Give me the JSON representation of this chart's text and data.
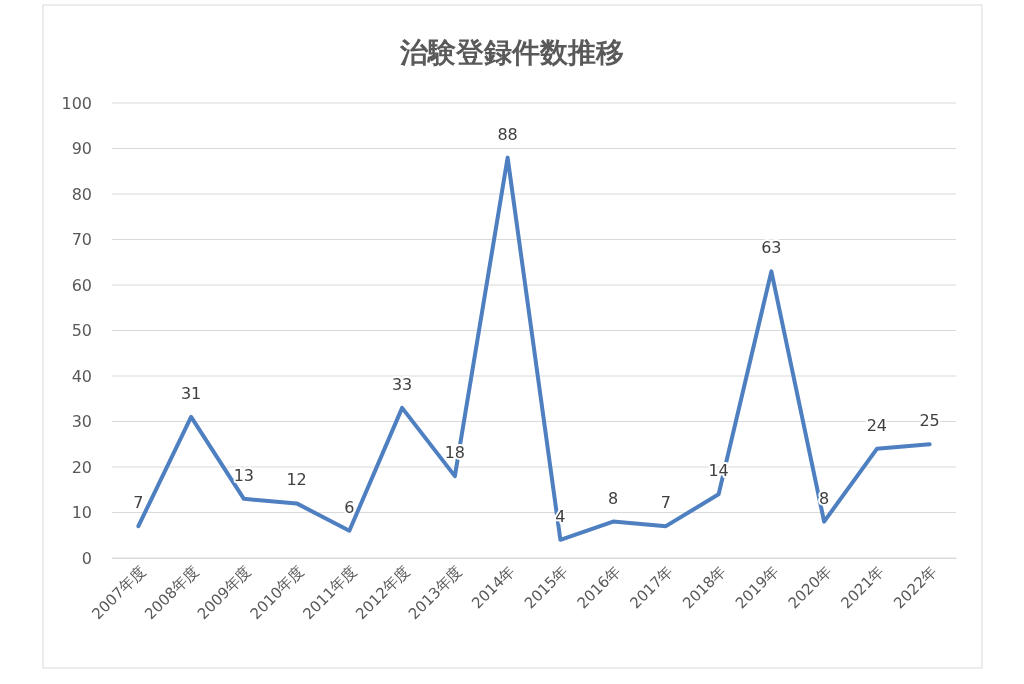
{
  "chart_data": {
    "type": "line",
    "title": "治験登録件数推移",
    "categories": [
      "2007年度",
      "2008年度",
      "2009年度",
      "2010年度",
      "2011年度",
      "2012年度",
      "2013年度",
      "2014年",
      "2015年",
      "2016年",
      "2017年",
      "2018年",
      "2019年",
      "2020年",
      "2021年",
      "2022年"
    ],
    "series": [
      {
        "color": "#4e7fc0",
        "values": [
          7,
          31,
          13,
          12,
          6,
          33,
          18,
          88,
          4,
          8,
          7,
          14,
          63,
          8,
          24,
          25
        ]
      }
    ],
    "ylim": [
      0,
      100
    ],
    "yticks": [
      0,
      10,
      20,
      30,
      40,
      50,
      60,
      70,
      80,
      90,
      100
    ],
    "grid": "y",
    "data_labels": true,
    "marker": "none",
    "line_style": "solid"
  }
}
